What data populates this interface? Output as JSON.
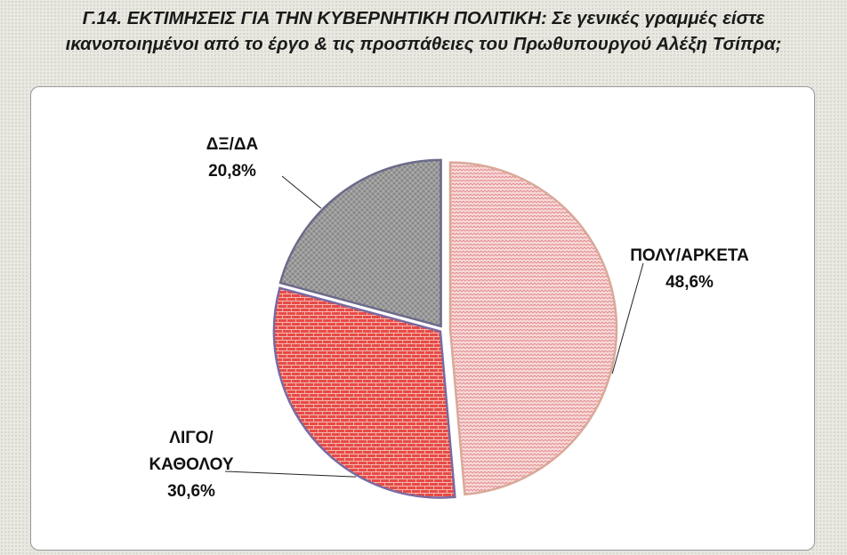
{
  "title": {
    "line1": "Γ.14. ΕΚΤΙΜΗΣΕΙΣ ΓΙΑ ΤΗΝ ΚΥΒΕΡΝΗΤΙΚΗ ΠΟΛΙΤΙΚΗ: Σε γενικές γραμμές είστε",
    "line2": "ικανοποιημένοι από το έργο & τις προσπάθειες του Πρωθυπουργού Αλέξη Τσίπρα;"
  },
  "chart_data": {
    "type": "pie",
    "slices": [
      {
        "label_lines": [
          "ΠΟΛΥ/ΑΡΚΕΤΑ"
        ],
        "value_label": "48,6%",
        "value": 48.6,
        "fill": "#f7dada",
        "pattern_color": "#e38a8a",
        "stroke": "#d9a999"
      },
      {
        "label_lines": [
          "ΛΙΓΟ/",
          "ΚΑΘΟΛΟΥ"
        ],
        "value_label": "30,6%",
        "value": 30.6,
        "fill": "#e84a46",
        "pattern_color": "#f4b8b0",
        "stroke": "#7a6aa0"
      },
      {
        "label_lines": [
          "ΔΞ/ΔΑ"
        ],
        "value_label": "20,8%",
        "value": 20.8,
        "fill": "#8a8a8a",
        "pattern_color": "#b6b6b6",
        "stroke": "#6a6a8a"
      }
    ],
    "start_angle_deg": 0,
    "direction": "clockwise",
    "legend": "none",
    "data_labels": "outside with leader lines"
  }
}
